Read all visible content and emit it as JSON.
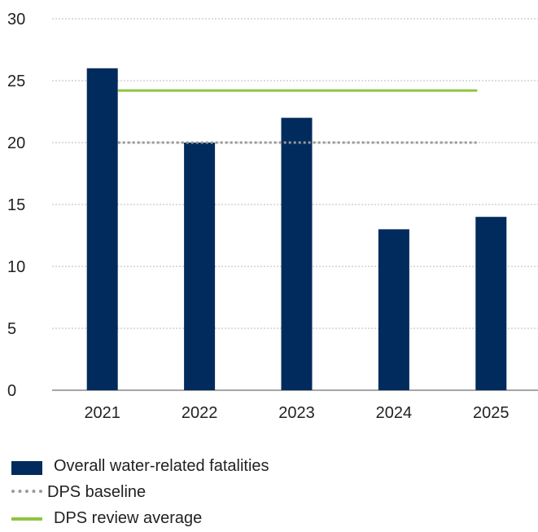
{
  "chart_data": {
    "type": "bar",
    "categories": [
      "2021",
      "2022",
      "2023",
      "2024",
      "2025"
    ],
    "series": [
      {
        "name": "Overall water-related fatalities",
        "values": [
          26,
          20,
          22,
          13,
          14
        ],
        "color": "#002b5c"
      }
    ],
    "reference_lines": [
      {
        "name": "DPS baseline",
        "value": 20,
        "style": "dotted",
        "color": "#9a9a9a"
      },
      {
        "name": "DPS review average",
        "value": 24.2,
        "style": "solid",
        "color": "#8dc63f"
      }
    ],
    "yticks": [
      "0",
      "5",
      "10",
      "15",
      "20",
      "25",
      "30"
    ],
    "ylim": [
      0,
      30
    ],
    "grid": true,
    "legend_position": "bottom-left"
  },
  "legend": {
    "items": [
      {
        "label": "Overall water-related fatalities"
      },
      {
        "label": "DPS baseline"
      },
      {
        "label": "DPS review average"
      }
    ]
  }
}
